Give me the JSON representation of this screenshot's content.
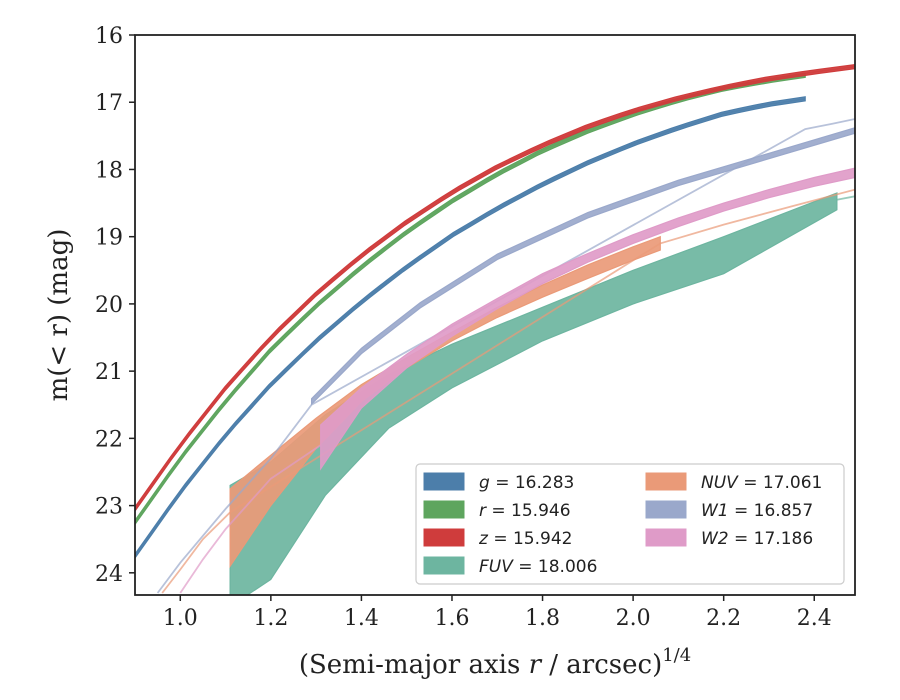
{
  "chart_data": {
    "type": "line",
    "xlabel": "(Semi-major axis r / arcsec)",
    "xlabel_italic": "r",
    "xlabel_sup": "1/4",
    "ylabel": "m(< r) (mag)",
    "xlim": [
      0.9,
      2.49
    ],
    "ylim": [
      24.33,
      16.0
    ],
    "y_inverted": true,
    "xticks": [
      "1.0",
      "1.2",
      "1.4",
      "1.6",
      "1.8",
      "2.0",
      "2.2",
      "2.4"
    ],
    "yticks": [
      "16",
      "17",
      "18",
      "19",
      "20",
      "21",
      "22",
      "23",
      "24"
    ],
    "grid": false,
    "legend_position": "lower-right",
    "legend_columns": 2,
    "series": [
      {
        "name": "g = 16.283",
        "band": "g",
        "color": "#4c7eaa",
        "x_full": [
          0.9,
          1.0,
          1.1,
          1.2,
          1.3,
          1.4,
          1.5,
          1.6,
          1.7,
          1.8,
          1.9,
          2.0,
          2.1,
          2.2,
          2.3,
          2.38
        ],
        "y_full": [
          23.75,
          22.8,
          21.95,
          21.2,
          20.55,
          19.97,
          19.45,
          18.98,
          18.58,
          18.22,
          17.9,
          17.62,
          17.38,
          17.17,
          17.03,
          16.95
        ],
        "x_band": [
          0.9,
          2.38
        ],
        "band_width": 0.06
      },
      {
        "name": "r = 15.946",
        "band": "r",
        "color": "#5ea55e",
        "x_full": [
          0.9,
          1.0,
          1.1,
          1.2,
          1.3,
          1.4,
          1.5,
          1.6,
          1.7,
          1.8,
          1.9,
          2.0,
          2.1,
          2.2,
          2.3,
          2.38
        ],
        "y_full": [
          23.25,
          22.3,
          21.45,
          20.68,
          20.03,
          19.45,
          18.93,
          18.47,
          18.07,
          17.72,
          17.43,
          17.18,
          16.97,
          16.8,
          16.68,
          16.6
        ],
        "x_band": [
          0.9,
          2.38
        ],
        "band_width": 0.06
      },
      {
        "name": "z = 15.942",
        "band": "z",
        "color": "#cf3c3c",
        "x_full": [
          0.9,
          1.0,
          1.1,
          1.2,
          1.3,
          1.4,
          1.5,
          1.6,
          1.7,
          1.8,
          1.9,
          2.0,
          2.1,
          2.2,
          2.3,
          2.4,
          2.49
        ],
        "y_full": [
          23.05,
          22.1,
          21.25,
          20.5,
          19.85,
          19.28,
          18.78,
          18.34,
          17.96,
          17.64,
          17.36,
          17.13,
          16.94,
          16.78,
          16.65,
          16.55,
          16.47
        ],
        "x_band": [
          0.9,
          2.49
        ],
        "band_width": 0.06
      },
      {
        "name": "FUV = 18.006",
        "band": "FUV",
        "color": "#6db5a0",
        "x_full": [
          2.45,
          2.49
        ],
        "y_full": [
          18.45,
          18.4
        ],
        "x_band": [
          1.11,
          1.2,
          1.32,
          1.46,
          1.6,
          1.8,
          2.0,
          2.2,
          2.45
        ],
        "y_upper": [
          22.7,
          22.35,
          21.65,
          21.05,
          20.6,
          20.05,
          19.5,
          19.0,
          18.35
        ],
        "y_lower": [
          24.5,
          24.1,
          22.85,
          21.85,
          21.25,
          20.55,
          20.0,
          19.55,
          18.6
        ]
      },
      {
        "name": "NUV = 17.061",
        "band": "NUV",
        "color": "#ea9a78",
        "x_full": [
          0.96,
          1.0,
          1.05,
          1.11,
          2.06,
          2.2,
          2.35,
          2.49
        ],
        "y_full": [
          24.3,
          23.95,
          23.5,
          23.1,
          19.1,
          18.82,
          18.55,
          18.3
        ],
        "x_band": [
          1.11,
          1.2,
          1.3,
          1.4,
          1.5,
          1.6,
          1.7,
          1.8,
          1.9,
          2.0,
          2.06
        ],
        "y_upper": [
          22.75,
          22.25,
          21.7,
          21.2,
          20.8,
          20.42,
          20.05,
          19.72,
          19.42,
          19.15,
          19.0
        ],
        "y_lower": [
          23.9,
          23.0,
          22.15,
          21.45,
          20.95,
          20.55,
          20.2,
          19.9,
          19.62,
          19.35,
          19.2
        ]
      },
      {
        "name": "W1 = 16.857",
        "band": "W1",
        "color": "#9aa8cb",
        "x_full": [
          0.95,
          1.0,
          1.1,
          1.2,
          1.29,
          2.38,
          2.44,
          2.49
        ],
        "y_full": [
          24.3,
          23.85,
          23.05,
          22.3,
          21.5,
          17.4,
          17.32,
          17.25
        ],
        "x_band": [
          1.29,
          1.4,
          1.53,
          1.7,
          1.9,
          2.1,
          2.3,
          2.49
        ],
        "y_center": [
          21.45,
          20.7,
          20.02,
          19.3,
          18.68,
          18.2,
          17.8,
          17.42
        ],
        "band_width": 0.08
      },
      {
        "name": "W2 = 17.186",
        "band": "W2",
        "color": "#df9bc8",
        "x_full": [
          1.0,
          1.05,
          1.1,
          1.2,
          1.31
        ],
        "y_full": [
          24.3,
          23.8,
          23.35,
          22.6,
          22.1
        ],
        "x_band": [
          1.31,
          1.4,
          1.5,
          1.6,
          1.7,
          1.8,
          1.9,
          2.0,
          2.1,
          2.2,
          2.3,
          2.4,
          2.49
        ],
        "y_upper": [
          21.8,
          21.25,
          20.75,
          20.3,
          19.92,
          19.55,
          19.25,
          18.97,
          18.72,
          18.5,
          18.3,
          18.12,
          17.98
        ],
        "y_lower": [
          22.45,
          21.55,
          20.95,
          20.48,
          20.07,
          19.7,
          19.38,
          19.1,
          18.85,
          18.62,
          18.42,
          18.25,
          18.12
        ]
      }
    ]
  }
}
